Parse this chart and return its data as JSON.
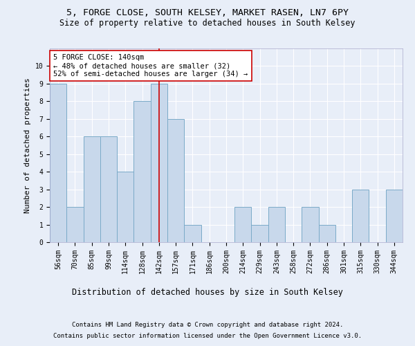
{
  "title1": "5, FORGE CLOSE, SOUTH KELSEY, MARKET RASEN, LN7 6PY",
  "title2": "Size of property relative to detached houses in South Kelsey",
  "xlabel": "Distribution of detached houses by size in South Kelsey",
  "ylabel": "Number of detached properties",
  "categories": [
    "56sqm",
    "70sqm",
    "85sqm",
    "99sqm",
    "114sqm",
    "128sqm",
    "142sqm",
    "157sqm",
    "171sqm",
    "186sqm",
    "200sqm",
    "214sqm",
    "229sqm",
    "243sqm",
    "258sqm",
    "272sqm",
    "286sqm",
    "301sqm",
    "315sqm",
    "330sqm",
    "344sqm"
  ],
  "values": [
    9,
    2,
    6,
    6,
    4,
    8,
    9,
    7,
    1,
    0,
    0,
    2,
    1,
    2,
    0,
    2,
    1,
    0,
    3,
    0,
    3
  ],
  "bar_color": "#c8d8eb",
  "bar_edge_color": "#7aaac8",
  "highlight_index": 6,
  "vline_color": "#cc0000",
  "annotation_line1": "5 FORGE CLOSE: 140sqm",
  "annotation_line2": "← 48% of detached houses are smaller (32)",
  "annotation_line3": "52% of semi-detached houses are larger (34) →",
  "annotation_box_color": "#ffffff",
  "annotation_box_edge": "#cc0000",
  "ylim": [
    0,
    11
  ],
  "yticks": [
    0,
    1,
    2,
    3,
    4,
    5,
    6,
    7,
    8,
    9,
    10,
    11
  ],
  "footer1": "Contains HM Land Registry data © Crown copyright and database right 2024.",
  "footer2": "Contains public sector information licensed under the Open Government Licence v3.0.",
  "bg_color": "#e8eef8",
  "plot_bg_color": "#e8eef8",
  "grid_color": "#ffffff",
  "title_fontsize": 9.5,
  "subtitle_fontsize": 8.5,
  "ylabel_fontsize": 8,
  "xlabel_fontsize": 8.5,
  "tick_fontsize": 7,
  "annot_fontsize": 7.5,
  "footer_fontsize": 6.5
}
